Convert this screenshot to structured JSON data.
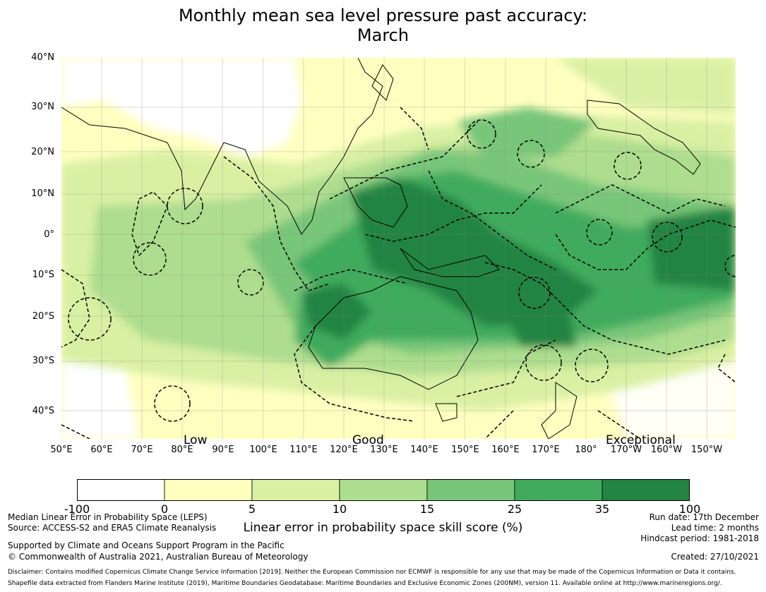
{
  "title": {
    "line1": "Monthly mean sea level pressure past accuracy:",
    "line2": "March"
  },
  "map": {
    "lat_labels": [
      "40°N",
      "30°N",
      "20°N",
      "10°N",
      "0°",
      "10°S",
      "20°S",
      "30°S",
      "40°S"
    ],
    "lon_labels": [
      "50°E",
      "60°E",
      "70°E",
      "80°E",
      "90°E",
      "100°E",
      "110°E",
      "120°E",
      "130°E",
      "140°E",
      "150°E",
      "160°E",
      "170°E",
      "180°",
      "170°W",
      "160°W",
      "150°W"
    ],
    "skill_labels": [
      "Low",
      "Good",
      "Exceptional"
    ]
  },
  "colorbar": {
    "title": "Linear error in probability space skill score (%)",
    "ticks": [
      "-100",
      "0",
      "5",
      "10",
      "15",
      "25",
      "35",
      "100"
    ],
    "colors": [
      "#ffffff",
      "#ffffc0",
      "#d9f0a3",
      "#addd8e",
      "#78c679",
      "#41ab5d",
      "#238443"
    ]
  },
  "footer": {
    "left1": "Median Linear Error in Probability Space (LEPS)",
    "left2": "Source: ACCESS-S2 and ERA5 Climate Reanalysis",
    "left3": "Supported by Climate and Oceans Support Program in the Pacific",
    "left4": "© Commonwealth of Australia 2021, Australian Bureau of Meteorology",
    "run_date": "Run date: 17th December",
    "lead_time": "Lead time: 2 months",
    "hindcast": "Hindcast period: 1981-2018",
    "created": "Created: 27/10/2021",
    "disclaimer1": "Disclaimer: Contains modified Copernicus Climate Change Service Information [2019]. Neither the European Commission nor ECMWF is responsible for any use that may be made of the Copernicus Information or Data it contains.",
    "disclaimer2": "Shapefile data extracted from Flanders Marine Institute (2019), Maritime Boundaries Geodatabase: Maritime Boundaries and Exclusive Economic Zones (200NM), version 11. Available online at http://www.marineregions.org/."
  }
}
